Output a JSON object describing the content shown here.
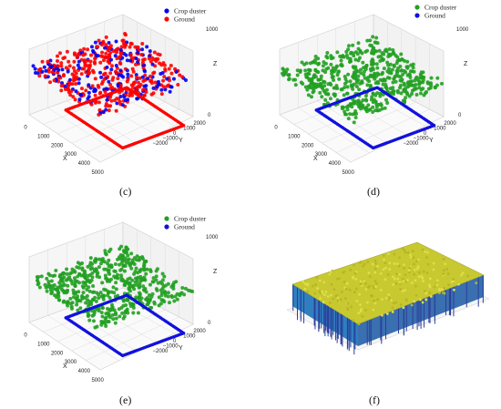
{
  "panel_captions": [
    "(c)",
    "(d)",
    "(e)",
    "(f)"
  ],
  "colors": {
    "crop": "#0000ee",
    "ground": "#ff0000",
    "green": "#22a022",
    "blue": "#1111dd",
    "surface_top": "#c8c830",
    "surface_side": "#2f7fbf"
  },
  "chart_data": [
    {
      "panel": "(c)",
      "type": "scatter",
      "legend": [
        {
          "name": "Crop duster",
          "color": "#0000ee"
        },
        {
          "name": "Ground",
          "color": "#ff0000"
        }
      ],
      "legend_position": "top-right",
      "x_ticks": [
        "0",
        "1000",
        "2000",
        "3000",
        "4000",
        "5000"
      ],
      "y_ticks": [
        "2000",
        "1000",
        "0",
        "−1000",
        "−2000"
      ],
      "z_ticks": [
        "1000",
        "0"
      ],
      "xlabel": "X",
      "ylabel": "Y",
      "zlabel": "Z",
      "x_range": [
        0,
        5000
      ],
      "y_range": [
        -2000,
        2000
      ],
      "z_range": [
        0,
        1000
      ],
      "grid": true
    },
    {
      "panel": "(d)",
      "type": "scatter",
      "legend": [
        {
          "name": "Crop duster",
          "color": "#22a022"
        },
        {
          "name": "Ground",
          "color": "#1111dd"
        }
      ],
      "legend_position": "top-right",
      "x_ticks": [
        "0",
        "1000",
        "2000",
        "3000",
        "4000",
        "5000"
      ],
      "y_ticks": [
        "2000",
        "1000",
        "0",
        "−1000",
        "−2000"
      ],
      "z_ticks": [
        "1000",
        "0"
      ],
      "xlabel": "X",
      "ylabel": "Y",
      "zlabel": "Z",
      "x_range": [
        0,
        5000
      ],
      "y_range": [
        -2000,
        2000
      ],
      "z_range": [
        0,
        1000
      ],
      "grid": true
    },
    {
      "panel": "(e)",
      "type": "scatter",
      "legend": [
        {
          "name": "Crop duster",
          "color": "#22a022"
        },
        {
          "name": "Ground",
          "color": "#1111dd"
        }
      ],
      "legend_position": "top-right",
      "x_ticks": [
        "0",
        "1000",
        "2000",
        "3000",
        "4000",
        "5000"
      ],
      "y_ticks": [
        "2000",
        "1000",
        "0",
        "−1000",
        "−2000"
      ],
      "z_ticks": [
        "1000",
        "0"
      ],
      "xlabel": "X",
      "ylabel": "Y",
      "zlabel": "Z",
      "x_range": [
        0,
        5000
      ],
      "y_range": [
        -2000,
        2000
      ],
      "z_range": [
        0,
        1000
      ],
      "grid": true
    },
    {
      "panel": "(f)",
      "type": "surface",
      "x_range": [
        -2000,
        6000
      ],
      "y_range": [
        -2000,
        2000
      ],
      "z_range": [
        0,
        1000
      ]
    }
  ]
}
